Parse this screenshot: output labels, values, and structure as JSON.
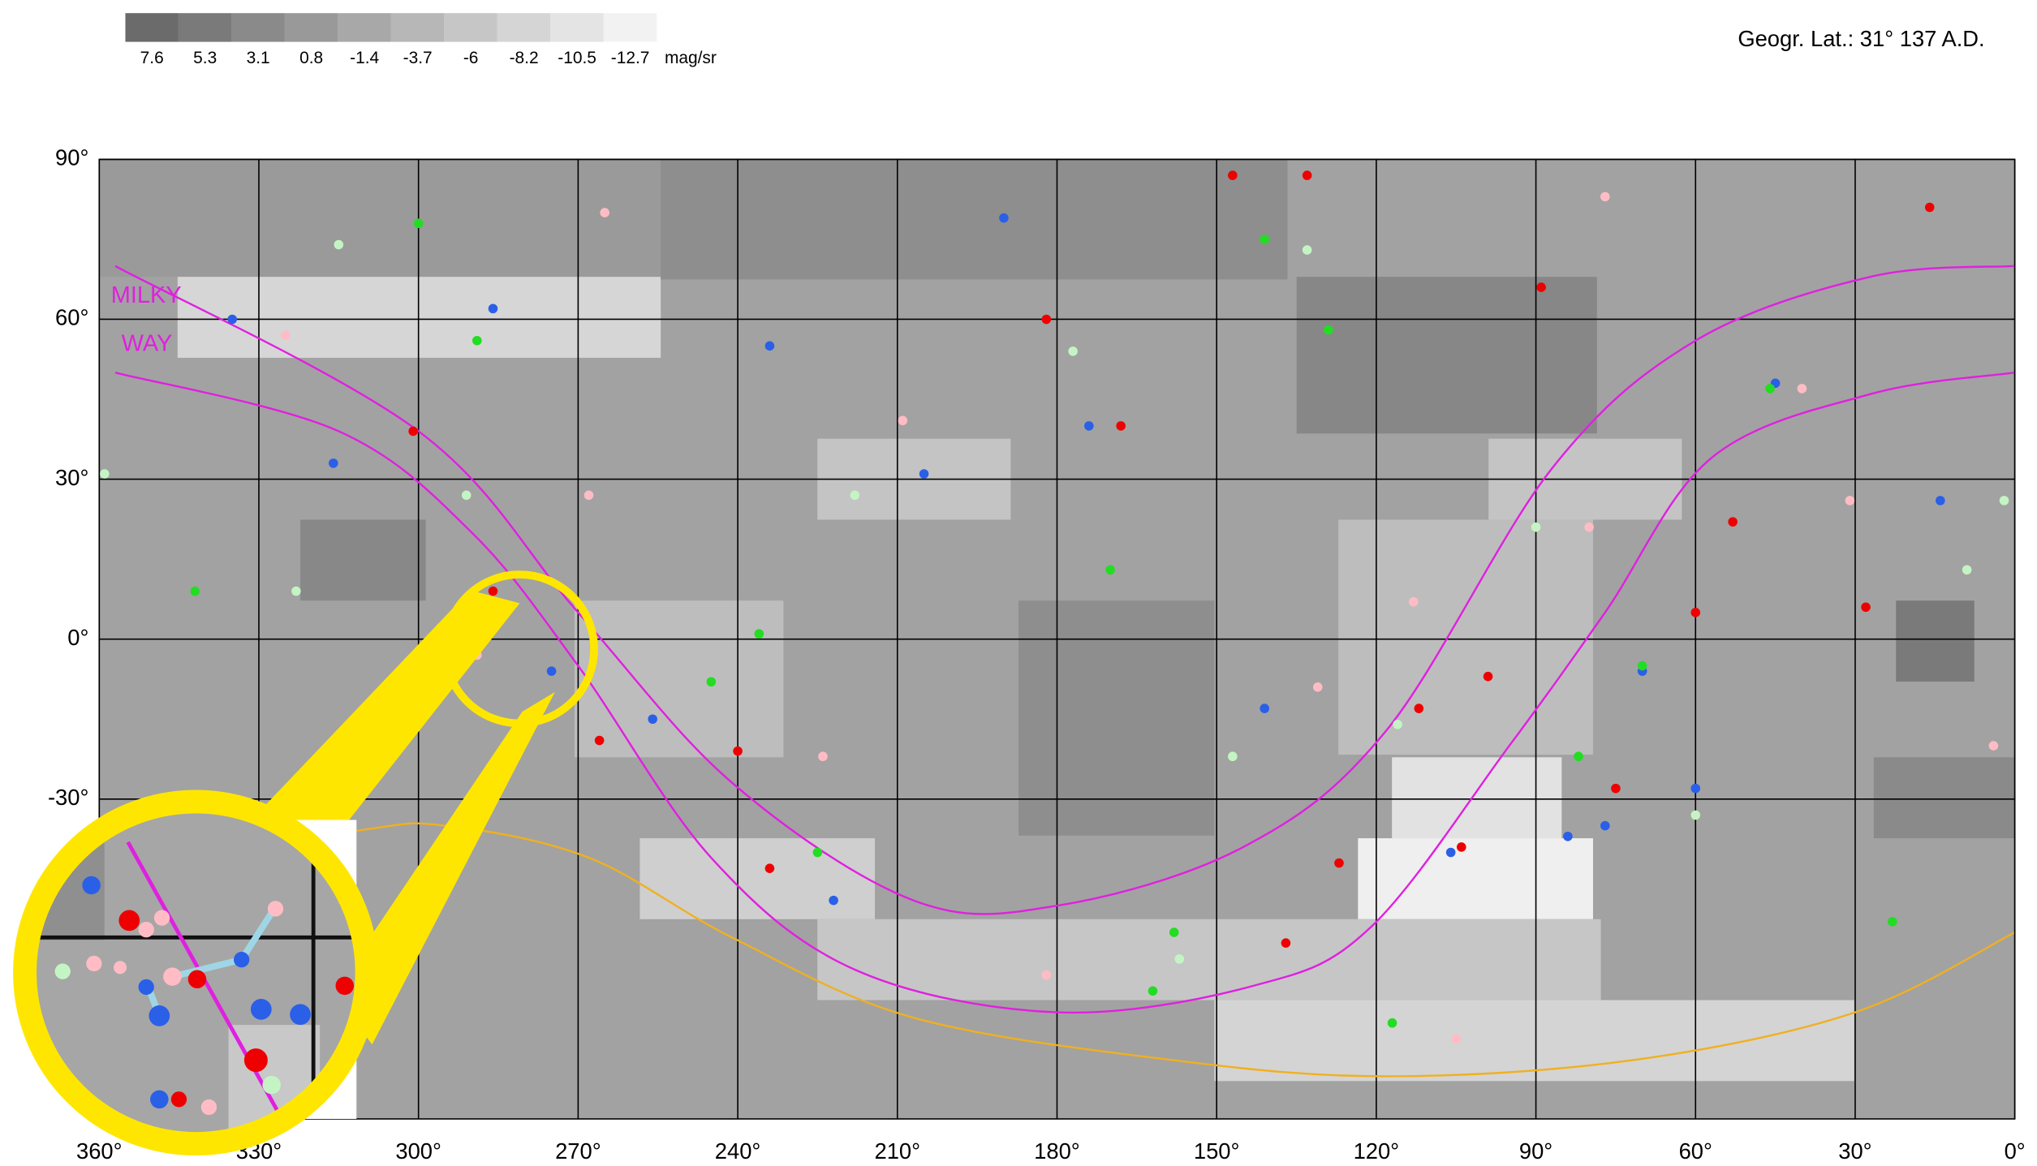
{
  "chart_data": {
    "type": "scatter",
    "header": "Geogr. Lat.: 31°   137 A.D.",
    "colorbar": {
      "labels": [
        7.6,
        5.3,
        3.1,
        0.8,
        -1.4,
        -3.7,
        -6.0,
        -8.2,
        -10.5,
        -12.7
      ],
      "colors": [
        "#6b6b6b",
        "#7a7a7a",
        "#8a8a8a",
        "#999999",
        "#a8a8a8",
        "#b7b7b7",
        "#c6c6c6",
        "#d5d5d5",
        "#e4e4e4",
        "#f2f2f2"
      ],
      "unit": "mag/sr"
    },
    "xlim": [
      360,
      0
    ],
    "ylim": [
      -90,
      90
    ],
    "xticks": [
      {
        "value": 360,
        "label": "360°"
      },
      {
        "value": 330,
        "label": "330°"
      },
      {
        "value": 300,
        "label": "300°"
      },
      {
        "value": 270,
        "label": "270°"
      },
      {
        "value": 240,
        "label": "240°"
      },
      {
        "value": 210,
        "label": "210°"
      },
      {
        "value": 180,
        "label": "180°"
      },
      {
        "value": 150,
        "label": "150°"
      },
      {
        "value": 120,
        "label": "120°"
      },
      {
        "value": 90,
        "label": "90°"
      },
      {
        "value": 60,
        "label": "60°"
      },
      {
        "value": 30,
        "label": "30°"
      },
      {
        "value": 0,
        "label": "0°"
      }
    ],
    "yticks": [
      {
        "value": 90,
        "label": "90°"
      },
      {
        "value": 60,
        "label": "60°"
      },
      {
        "value": 30,
        "label": "30°"
      },
      {
        "value": 0,
        "label": "0°"
      },
      {
        "value": -30,
        "label": "-30°"
      }
    ],
    "grid": true,
    "annotations": [
      "MILKY",
      "WAY"
    ],
    "lines": [
      {
        "color": "#e020e0",
        "x": [
          357,
          300,
          270,
          241,
          207,
          180,
          145,
          118,
          87,
          60,
          27,
          0
        ],
        "y": [
          70,
          39,
          5,
          -27,
          -49,
          -50,
          -39,
          -17,
          32,
          56,
          68,
          70
        ]
      },
      {
        "color": "#e020e0",
        "x": [
          357,
          315,
          290,
          270,
          245,
          218,
          180,
          143,
          121,
          95,
          77,
          57,
          27,
          0
        ],
        "y": [
          50,
          39,
          20,
          -5,
          -41,
          -62,
          -70,
          -65,
          -54,
          -20,
          5,
          34,
          46,
          50
        ]
      },
      {
        "color": "#f0b020",
        "x": [
          360,
          312,
          295,
          268,
          241,
          207,
          158,
          118,
          72,
          30,
          0
        ],
        "y": [
          -44,
          -36,
          -35,
          -41,
          -56,
          -71,
          -79,
          -82,
          -79,
          -70,
          -55
        ]
      }
    ],
    "series": [
      {
        "color": "#ee0000",
        "x": [
          89,
          104,
          234,
          99,
          112,
          286,
          266,
          60,
          182,
          168,
          28,
          133,
          147,
          301,
          240,
          16,
          127,
          137,
          75,
          53
        ],
        "y": [
          66,
          -39,
          -43,
          -7,
          -13,
          9,
          -19,
          5,
          60,
          40,
          6,
          87,
          87,
          39,
          -21,
          81,
          -42,
          -57,
          -28,
          22
        ]
      },
      {
        "color": "#ffbcc4",
        "x": [
          105,
          265,
          113,
          224,
          40,
          77,
          325,
          4,
          80,
          209,
          289,
          131,
          182,
          31,
          268
        ],
        "y": [
          -75,
          80,
          7,
          -22,
          47,
          83,
          57,
          -20,
          21,
          41,
          -3,
          -9,
          -63,
          26,
          27
        ]
      },
      {
        "color": "#2a5fe8",
        "x": [
          286,
          205,
          335,
          84,
          77,
          275,
          256,
          106,
          174,
          14,
          70,
          222,
          316,
          45,
          190,
          60,
          141,
          234
        ],
        "y": [
          62,
          31,
          60,
          -37,
          -35,
          -6,
          -15,
          -40,
          40,
          26,
          -6,
          -49,
          33,
          48,
          79,
          -28,
          -13,
          55
        ]
      },
      {
        "color": "#22dd22",
        "x": [
          141,
          70,
          158,
          236,
          117,
          162,
          289,
          129,
          23,
          225,
          342,
          170,
          82,
          300,
          245,
          46
        ],
        "y": [
          75,
          -5,
          -55,
          1,
          -72,
          -66,
          56,
          58,
          -53,
          -40,
          9,
          13,
          -22,
          78,
          -8,
          47
        ]
      },
      {
        "color": "#c4f4c4",
        "x": [
          133,
          359,
          147,
          116,
          177,
          90,
          323,
          9,
          2,
          315,
          218,
          157,
          60,
          291
        ],
        "y": [
          73,
          31,
          -22,
          -16,
          54,
          21,
          9,
          13,
          26,
          74,
          27,
          -60,
          -33,
          27
        ]
      }
    ]
  }
}
